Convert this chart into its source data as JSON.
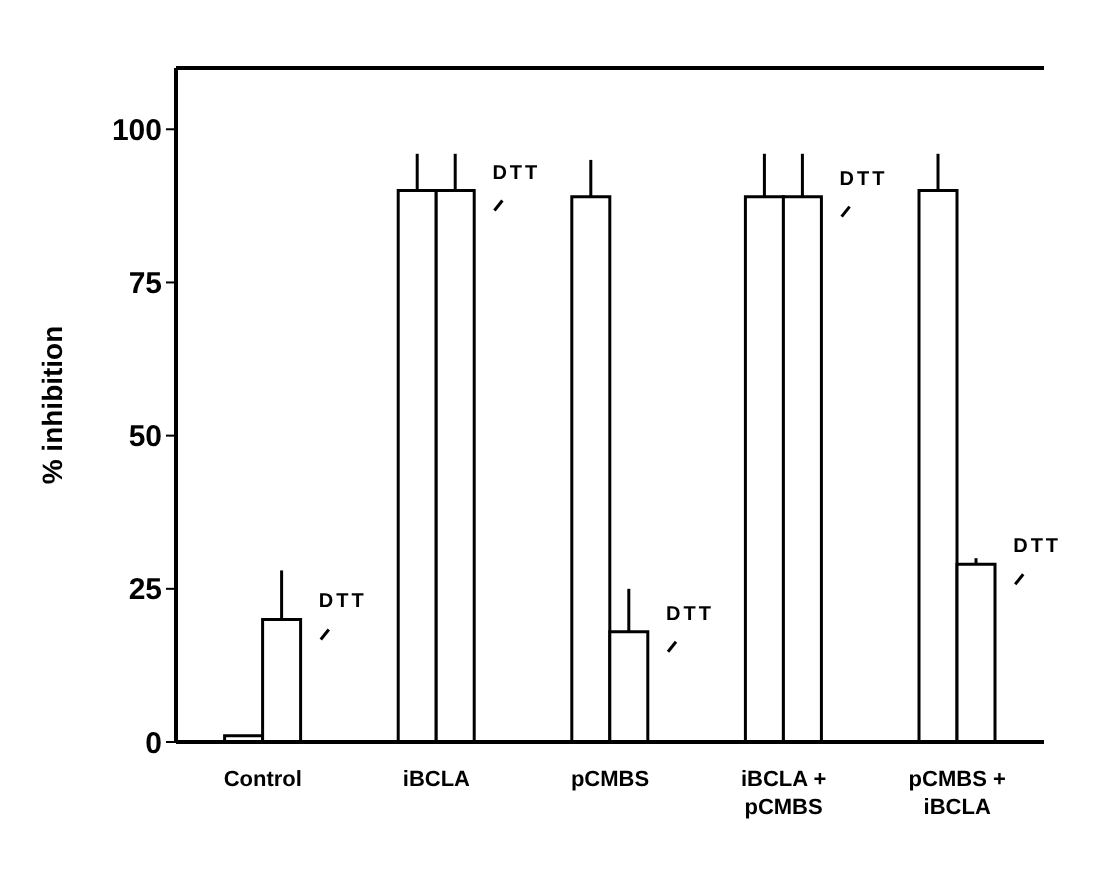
{
  "chart_data": {
    "type": "bar",
    "ylabel": "% inhibition",
    "categories": [
      "Control",
      "iBCLA",
      "pCMBS",
      "iBCLA + pCMBS",
      "pCMBS + iBCLA"
    ],
    "series": [
      {
        "color": "#ffffff",
        "values": [
          1,
          90,
          89,
          89,
          90
        ],
        "errors": [
          null,
          [
            90,
            96
          ],
          [
            89,
            95
          ],
          [
            89,
            96
          ],
          [
            90,
            96
          ]
        ]
      },
      {
        "color": "#ffffff",
        "values": [
          20,
          90,
          18,
          89,
          29
        ],
        "errors": [
          [
            20,
            28
          ],
          [
            90,
            96
          ],
          [
            18,
            25
          ],
          [
            89,
            96
          ],
          [
            29,
            30
          ]
        ]
      }
    ],
    "annotations": [
      {
        "text": "DTT",
        "x": "Control",
        "y": 20
      },
      {
        "text": "DTT",
        "x": "iBCLA",
        "y": 90
      },
      {
        "text": "DTT",
        "x": "pCMBS",
        "y": 18
      },
      {
        "text": "DTT",
        "x": "iBCLA + pCMBS",
        "y": 89
      },
      {
        "text": "DTT",
        "x": "pCMBS + iBCLA",
        "y": 29
      }
    ],
    "ylim": [
      0,
      110
    ],
    "yticks": [
      0,
      25,
      50,
      75,
      100
    ],
    "grid": false,
    "legend": false
  }
}
